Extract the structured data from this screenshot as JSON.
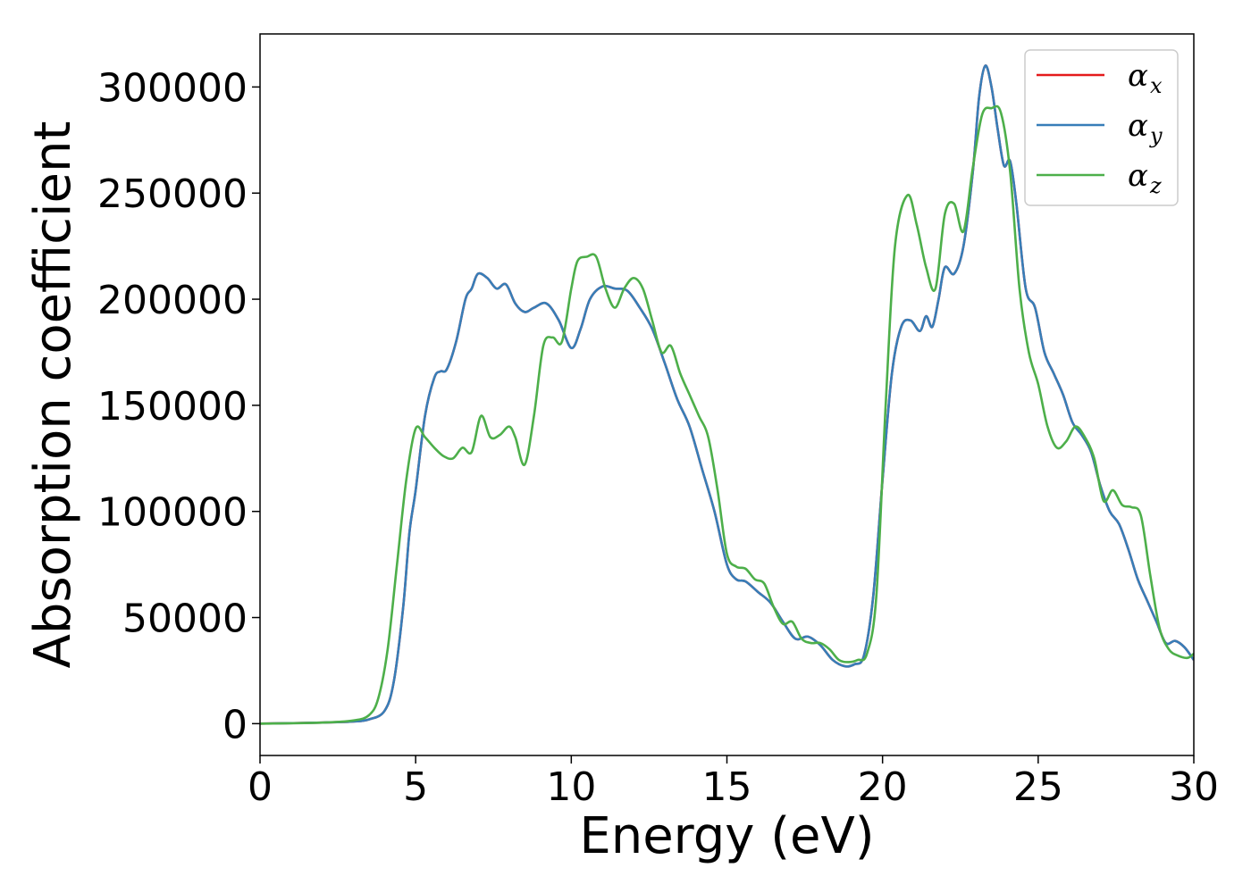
{
  "chart_data": {
    "type": "line",
    "title": "",
    "xlabel": "Energy (eV)",
    "ylabel": "Absorption coefficient",
    "xlim": [
      0,
      30
    ],
    "ylim": [
      -15000,
      325000
    ],
    "xticks": [
      0,
      5,
      10,
      15,
      20,
      25,
      30
    ],
    "yticks": [
      0,
      50000,
      100000,
      150000,
      200000,
      250000,
      300000
    ],
    "grid": false,
    "legend": {
      "placement": "top-right"
    },
    "series": [
      {
        "name": "α",
        "subscript": "x",
        "color": "#e41a1c",
        "x": [
          0,
          2,
          3,
          3.5,
          4,
          4.3,
          4.6,
          4.8,
          5,
          5.3,
          5.6,
          5.8,
          6,
          6.3,
          6.6,
          6.8,
          7,
          7.3,
          7.6,
          7.9,
          8.2,
          8.5,
          8.8,
          9.2,
          9.6,
          10,
          10.3,
          10.6,
          11,
          11.4,
          11.8,
          12.2,
          12.6,
          13,
          13.4,
          13.8,
          14.2,
          14.6,
          15,
          15.3,
          15.6,
          16,
          16.4,
          16.8,
          17.2,
          17.6,
          18,
          18.4,
          18.8,
          19.1,
          19.4,
          19.7,
          20,
          20.3,
          20.6,
          20.9,
          21.2,
          21.4,
          21.6,
          21.8,
          22,
          22.3,
          22.6,
          22.9,
          23.1,
          23.3,
          23.5,
          23.7,
          23.9,
          24.1,
          24.3,
          24.6,
          24.9,
          25.2,
          25.5,
          25.8,
          26.1,
          26.4,
          26.7,
          27,
          27.3,
          27.6,
          27.9,
          28.2,
          28.5,
          28.8,
          29.1,
          29.4,
          29.7,
          30
        ],
        "y": [
          0,
          500,
          1000,
          2000,
          6000,
          20000,
          55000,
          90000,
          110000,
          145000,
          163000,
          166000,
          167000,
          180000,
          200000,
          205000,
          212000,
          210000,
          205000,
          207000,
          198000,
          194000,
          196000,
          198000,
          190000,
          177000,
          186000,
          200000,
          206000,
          205000,
          204000,
          196000,
          186000,
          170000,
          153000,
          140000,
          120000,
          100000,
          75000,
          68000,
          67000,
          62000,
          57000,
          48000,
          40000,
          41000,
          37000,
          30000,
          27000,
          28000,
          32000,
          60000,
          115000,
          165000,
          187000,
          190000,
          185000,
          192000,
          187000,
          200000,
          215000,
          212000,
          225000,
          260000,
          295000,
          310000,
          300000,
          280000,
          263000,
          265000,
          245000,
          205000,
          196000,
          175000,
          165000,
          155000,
          142000,
          136000,
          128000,
          112000,
          100000,
          94000,
          82000,
          68000,
          58000,
          48000,
          38000,
          39000,
          36000,
          30000
        ]
      },
      {
        "name": "α",
        "subscript": "y",
        "color": "#377eb8",
        "x": [
          0,
          2,
          3,
          3.5,
          4,
          4.3,
          4.6,
          4.8,
          5,
          5.3,
          5.6,
          5.8,
          6,
          6.3,
          6.6,
          6.8,
          7,
          7.3,
          7.6,
          7.9,
          8.2,
          8.5,
          8.8,
          9.2,
          9.6,
          10,
          10.3,
          10.6,
          11,
          11.4,
          11.8,
          12.2,
          12.6,
          13,
          13.4,
          13.8,
          14.2,
          14.6,
          15,
          15.3,
          15.6,
          16,
          16.4,
          16.8,
          17.2,
          17.6,
          18,
          18.4,
          18.8,
          19.1,
          19.4,
          19.7,
          20,
          20.3,
          20.6,
          20.9,
          21.2,
          21.4,
          21.6,
          21.8,
          22,
          22.3,
          22.6,
          22.9,
          23.1,
          23.3,
          23.5,
          23.7,
          23.9,
          24.1,
          24.3,
          24.6,
          24.9,
          25.2,
          25.5,
          25.8,
          26.1,
          26.4,
          26.7,
          27,
          27.3,
          27.6,
          27.9,
          28.2,
          28.5,
          28.8,
          29.1,
          29.4,
          29.7,
          30
        ],
        "y": [
          0,
          500,
          1000,
          2000,
          6000,
          20000,
          55000,
          90000,
          110000,
          145000,
          163000,
          166000,
          167000,
          180000,
          200000,
          205000,
          212000,
          210000,
          205000,
          207000,
          198000,
          194000,
          196000,
          198000,
          190000,
          177000,
          186000,
          200000,
          206000,
          205000,
          204000,
          196000,
          186000,
          170000,
          153000,
          140000,
          120000,
          100000,
          75000,
          68000,
          67000,
          62000,
          57000,
          48000,
          40000,
          41000,
          37000,
          30000,
          27000,
          28000,
          32000,
          60000,
          115000,
          165000,
          187000,
          190000,
          185000,
          192000,
          187000,
          200000,
          215000,
          212000,
          225000,
          260000,
          295000,
          310000,
          300000,
          280000,
          263000,
          265000,
          245000,
          205000,
          196000,
          175000,
          165000,
          155000,
          142000,
          136000,
          128000,
          112000,
          100000,
          94000,
          82000,
          68000,
          58000,
          48000,
          38000,
          39000,
          36000,
          30000
        ]
      },
      {
        "name": "α",
        "subscript": "z",
        "color": "#4daf4a",
        "x": [
          0,
          2,
          3,
          3.5,
          3.8,
          4.1,
          4.4,
          4.7,
          5,
          5.3,
          5.6,
          5.9,
          6.2,
          6.5,
          6.8,
          7.1,
          7.4,
          7.7,
          8,
          8.2,
          8.5,
          8.8,
          9.1,
          9.4,
          9.7,
          10,
          10.2,
          10.5,
          10.8,
          11.1,
          11.4,
          11.7,
          12,
          12.3,
          12.6,
          12.9,
          13.2,
          13.5,
          13.8,
          14.1,
          14.4,
          14.7,
          15,
          15.3,
          15.6,
          15.9,
          16.2,
          16.5,
          16.8,
          17.1,
          17.4,
          17.7,
          18,
          18.3,
          18.6,
          18.9,
          19.2,
          19.5,
          19.8,
          20.1,
          20.4,
          20.8,
          21.1,
          21.4,
          21.7,
          22,
          22.3,
          22.6,
          22.9,
          23.2,
          23.5,
          23.8,
          24.1,
          24.4,
          24.7,
          25,
          25.3,
          25.6,
          25.9,
          26.2,
          26.5,
          26.8,
          27.1,
          27.4,
          27.7,
          28,
          28.3,
          28.6,
          28.9,
          29.2,
          29.5,
          29.8,
          30
        ],
        "y": [
          0,
          500,
          1500,
          4000,
          12000,
          35000,
          75000,
          115000,
          139000,
          135000,
          130000,
          126000,
          125000,
          130000,
          128000,
          145000,
          135000,
          136000,
          140000,
          135000,
          122000,
          145000,
          178000,
          182000,
          180000,
          205000,
          218000,
          220000,
          220000,
          205000,
          196000,
          205000,
          210000,
          205000,
          190000,
          175000,
          178000,
          165000,
          155000,
          145000,
          135000,
          110000,
          80000,
          74000,
          73000,
          68000,
          66000,
          55000,
          47000,
          48000,
          40000,
          38000,
          38000,
          35000,
          30000,
          29000,
          30000,
          33000,
          60000,
          150000,
          225000,
          249000,
          235000,
          215000,
          205000,
          240000,
          245000,
          232000,
          262000,
          287000,
          290000,
          288000,
          260000,
          205000,
          175000,
          160000,
          140000,
          130000,
          133000,
          140000,
          135000,
          125000,
          105000,
          110000,
          103000,
          102000,
          98000,
          70000,
          45000,
          35000,
          32000,
          31000,
          33000
        ]
      }
    ]
  }
}
